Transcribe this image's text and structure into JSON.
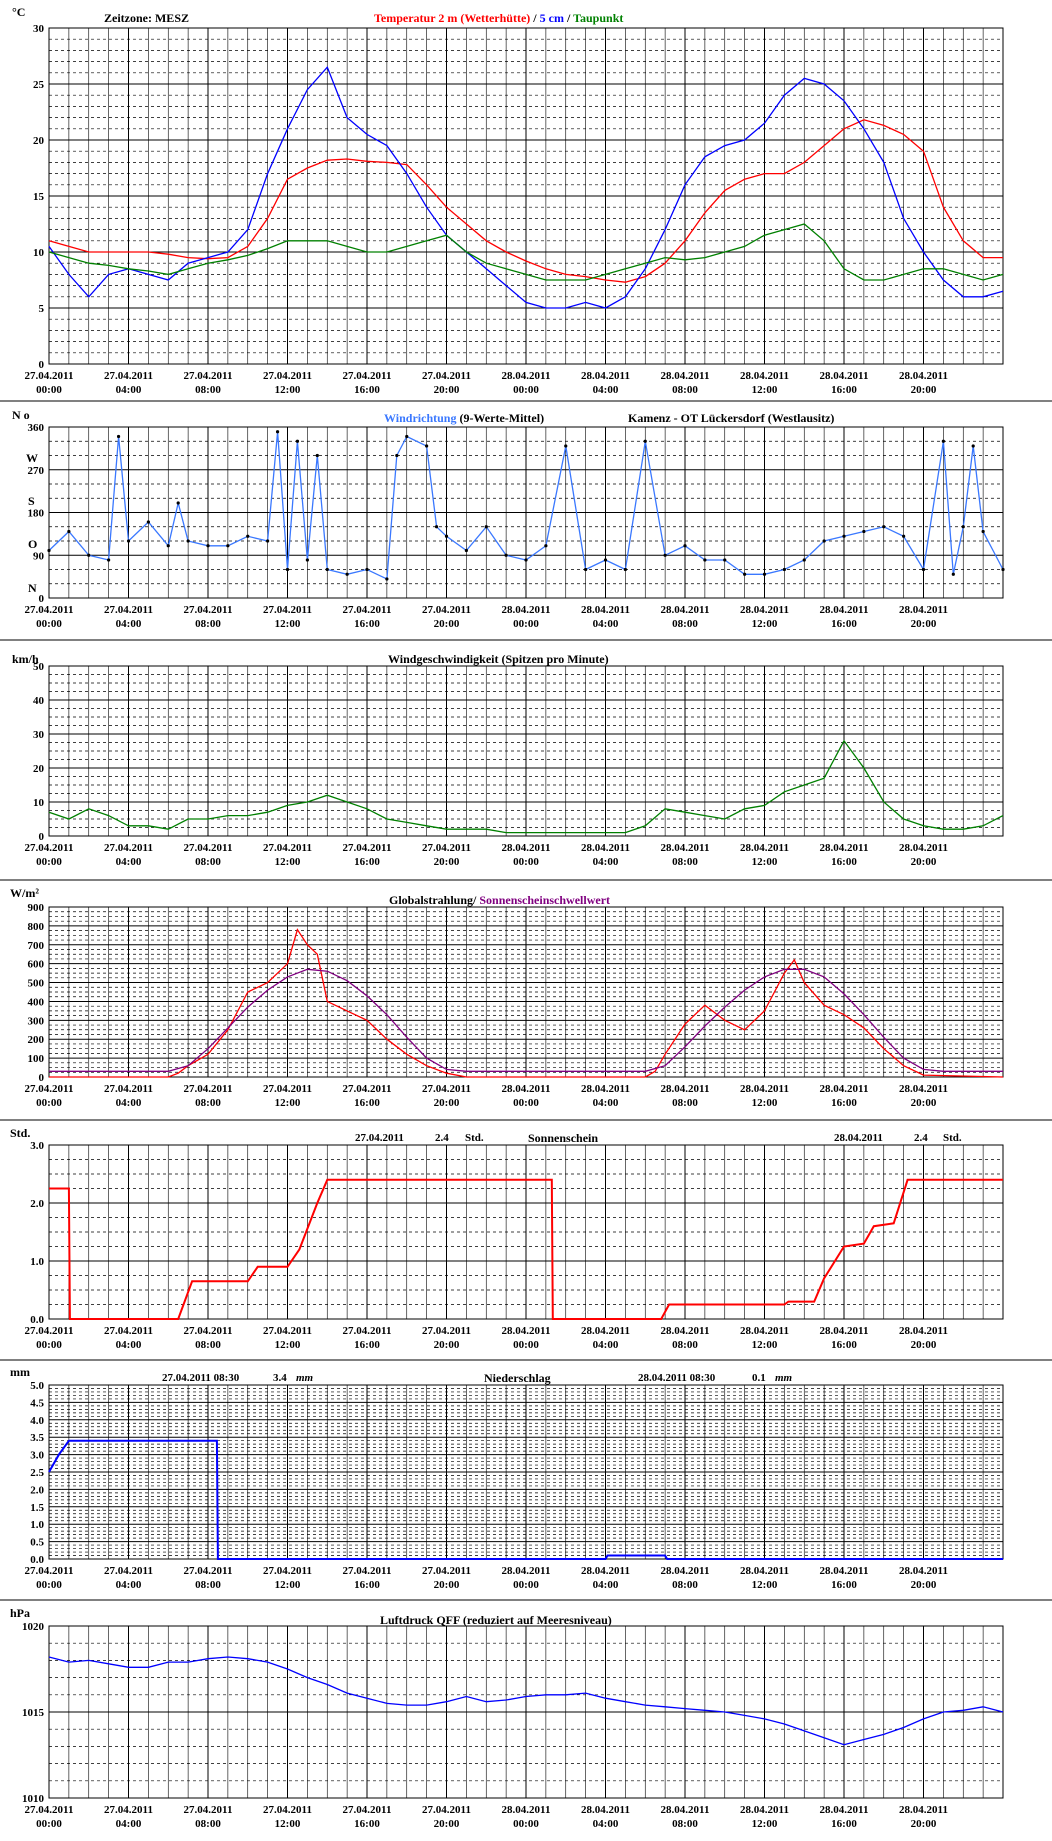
{
  "x_ticks": [
    {
      "date": "27.04.2011",
      "time": "00:00"
    },
    {
      "date": "27.04.2011",
      "time": "04:00"
    },
    {
      "date": "27.04.2011",
      "time": "08:00"
    },
    {
      "date": "27.04.2011",
      "time": "12:00"
    },
    {
      "date": "27.04.2011",
      "time": "16:00"
    },
    {
      "date": "27.04.2011",
      "time": "20:00"
    },
    {
      "date": "28.04.2011",
      "time": "00:00"
    },
    {
      "date": "28.04.2011",
      "time": "04:00"
    },
    {
      "date": "28.04.2011",
      "time": "08:00"
    },
    {
      "date": "28.04.2011",
      "time": "12:00"
    },
    {
      "date": "28.04.2011",
      "time": "16:00"
    },
    {
      "date": "28.04.2011",
      "time": "20:00"
    }
  ],
  "colors": {
    "red": "#ff0000",
    "blue": "#0000ff",
    "green": "#008000",
    "lightblue": "#3a78ff",
    "purple": "#800080",
    "black": "#000000"
  },
  "panels": {
    "temp": {
      "unit": "°C",
      "zone": "Zeitzone: MESZ",
      "title_parts": [
        {
          "text": "Temperatur 2 m (Wetterhütte)",
          "color": "#ff0000"
        },
        {
          "text": " / ",
          "color": "#000000"
        },
        {
          "text": "5 cm",
          "color": "#0000ff"
        },
        {
          "text": " / ",
          "color": "#000000"
        },
        {
          "text": "Taupunkt",
          "color": "#008000"
        }
      ]
    },
    "wind_dir": {
      "unit": "N o",
      "title_blue": "Windrichtung",
      "title_black": " (9-Werte-Mittel)",
      "station": "Kamenz - OT Lückersdorf (Westlausitz)",
      "letters": [
        "N",
        "O",
        "S",
        "W"
      ]
    },
    "wind_speed": {
      "unit": "km/h",
      "title": "Windgeschwindigkeit (Spitzen pro Minute)"
    },
    "radiation": {
      "unit": "W/m²",
      "title_black": "Globalstrahlung/ ",
      "title_purple": "Sonnenscheinschwellwert"
    },
    "sunshine": {
      "unit": "Std.",
      "title": "Sonnenschein",
      "day1_date": "27.04.2011",
      "day1_value": "2.4",
      "day1_unit": "Std.",
      "day2_date": "28.04.2011",
      "day2_value": "2.4",
      "day2_unit": "Std."
    },
    "precip": {
      "unit": "mm",
      "title": "Niederschlag",
      "day1_label": "27.04.2011 08:30",
      "day1_value": "3.4",
      "day1_unit": "mm",
      "day2_label": "28.04.2011 08:30",
      "day2_value": "0.1",
      "day2_unit": "mm"
    },
    "pressure": {
      "unit": "hPa",
      "title": "Luftdruck QFF (reduziert auf Meeresniveau)"
    }
  },
  "chart_data": [
    {
      "type": "line",
      "title": "Temperatur 2 m (Wetterhütte) / 5 cm / Taupunkt",
      "ylabel": "°C",
      "ylim": [
        0,
        30
      ],
      "yticks": [
        0,
        5,
        10,
        15,
        20,
        25,
        30
      ],
      "x_hours": [
        0,
        48
      ],
      "series": [
        {
          "name": "Temperatur 2 m (Wetterhütte)",
          "color": "#ff0000",
          "x": [
            0,
            1,
            2,
            3,
            4,
            5,
            6,
            7,
            8,
            9,
            10,
            11,
            12,
            13,
            14,
            15,
            16,
            17,
            18,
            19,
            20,
            21,
            22,
            23,
            24,
            25,
            26,
            27,
            28,
            29,
            30,
            31,
            32,
            33,
            34,
            35,
            36,
            37,
            38,
            39,
            40,
            41,
            42,
            43,
            44,
            45,
            46,
            47,
            48
          ],
          "y": [
            11,
            10.5,
            10,
            10,
            10,
            10,
            9.8,
            9.5,
            9.4,
            9.5,
            10.5,
            13,
            16.5,
            17.5,
            18.2,
            18.3,
            18.1,
            18,
            17.8,
            16,
            14,
            12.5,
            11,
            10,
            9.2,
            8.5,
            8,
            7.8,
            7.5,
            7.3,
            7.8,
            9,
            11,
            13.5,
            15.5,
            16.5,
            17,
            17,
            18,
            19.5,
            21,
            21.8,
            21.3,
            20.5,
            19,
            14,
            11,
            9.5,
            9.5
          ]
        },
        {
          "name": "5 cm",
          "color": "#0000ff",
          "x": [
            0,
            1,
            2,
            3,
            4,
            5,
            6,
            7,
            8,
            9,
            10,
            11,
            12,
            13,
            14,
            15,
            16,
            17,
            18,
            19,
            20,
            21,
            22,
            23,
            24,
            25,
            26,
            27,
            28,
            29,
            30,
            31,
            32,
            33,
            34,
            35,
            36,
            37,
            38,
            39,
            40,
            41,
            42,
            43,
            44,
            45,
            46,
            47,
            48
          ],
          "y": [
            10.5,
            8,
            6,
            8,
            8.5,
            8,
            7.5,
            9,
            9.5,
            10,
            12,
            17,
            21,
            24.5,
            26.5,
            22,
            20.5,
            19.5,
            17,
            14,
            11.5,
            10,
            8.5,
            7,
            5.5,
            5,
            5,
            5.5,
            5,
            6,
            8.5,
            12,
            16,
            18.5,
            19.5,
            20,
            21.5,
            24,
            25.5,
            25,
            23.5,
            21,
            18,
            13,
            10,
            7.5,
            6,
            6,
            6.5
          ]
        },
        {
          "name": "Taupunkt",
          "color": "#008000",
          "x": [
            0,
            1,
            2,
            3,
            4,
            5,
            6,
            7,
            8,
            9,
            10,
            11,
            12,
            13,
            14,
            15,
            16,
            17,
            18,
            19,
            20,
            21,
            22,
            23,
            24,
            25,
            26,
            27,
            28,
            29,
            30,
            31,
            32,
            33,
            34,
            35,
            36,
            37,
            38,
            39,
            40,
            41,
            42,
            43,
            44,
            45,
            46,
            47,
            48
          ],
          "y": [
            10,
            9.5,
            9,
            8.8,
            8.5,
            8.3,
            8,
            8.5,
            9,
            9.3,
            9.7,
            10.3,
            11,
            11,
            11,
            10.5,
            10,
            10,
            10.5,
            11,
            11.5,
            10,
            9,
            8.5,
            8,
            7.5,
            7.5,
            7.5,
            8,
            8.5,
            9,
            9.5,
            9.3,
            9.5,
            10,
            10.5,
            11.5,
            12,
            12.5,
            11,
            8.5,
            7.5,
            7.5,
            8,
            8.5,
            8.5,
            8,
            7.5,
            8
          ]
        }
      ]
    },
    {
      "type": "scatter",
      "title": "Windrichtung (9-Werte-Mittel)",
      "ylabel": "N o",
      "ylim": [
        0,
        360
      ],
      "yticks": [
        0,
        90,
        180,
        270,
        360
      ],
      "x_hours": [
        0,
        48
      ],
      "series": [
        {
          "name": "Windrichtung",
          "color": "#3a78ff",
          "x": [
            0,
            1,
            2,
            3,
            3.5,
            4,
            5,
            6,
            6.5,
            7,
            8,
            9,
            10,
            11,
            11.5,
            12,
            12.5,
            13,
            13.5,
            14,
            15,
            16,
            17,
            17.5,
            18,
            19,
            19.5,
            20,
            21,
            22,
            23,
            24,
            25,
            26,
            27,
            28,
            29,
            30,
            31,
            32,
            33,
            34,
            35,
            36,
            37,
            38,
            39,
            40,
            41,
            42,
            43,
            44,
            45,
            45.5,
            46,
            46.5,
            47,
            48
          ],
          "y": [
            100,
            140,
            90,
            80,
            340,
            120,
            160,
            110,
            200,
            120,
            110,
            110,
            130,
            120,
            350,
            60,
            330,
            80,
            300,
            60,
            50,
            60,
            40,
            300,
            340,
            320,
            150,
            130,
            100,
            150,
            90,
            80,
            110,
            320,
            60,
            80,
            60,
            330,
            90,
            110,
            80,
            80,
            50,
            50,
            60,
            80,
            120,
            130,
            140,
            150,
            130,
            60,
            330,
            50,
            150,
            320,
            140,
            60
          ]
        }
      ]
    },
    {
      "type": "line",
      "title": "Windgeschwindigkeit (Spitzen pro Minute)",
      "ylabel": "km/h",
      "ylim": [
        0,
        50
      ],
      "yticks": [
        0,
        10,
        20,
        30,
        40,
        50
      ],
      "x_hours": [
        0,
        48
      ],
      "series": [
        {
          "name": "Windgeschwindigkeit",
          "color": "#008000",
          "x": [
            0,
            1,
            2,
            3,
            4,
            5,
            6,
            7,
            8,
            9,
            10,
            11,
            12,
            13,
            14,
            15,
            16,
            17,
            18,
            19,
            20,
            21,
            22,
            23,
            24,
            25,
            26,
            27,
            28,
            29,
            30,
            31,
            32,
            33,
            34,
            35,
            36,
            37,
            38,
            39,
            40,
            41,
            42,
            43,
            44,
            45,
            46,
            47,
            48
          ],
          "y": [
            7,
            5,
            8,
            6,
            3,
            3,
            2,
            5,
            5,
            6,
            6,
            7,
            9,
            10,
            12,
            10,
            8,
            5,
            4,
            3,
            2,
            2,
            2,
            1,
            1,
            1,
            1,
            1,
            1,
            1,
            3,
            8,
            7,
            6,
            5,
            8,
            9,
            13,
            15,
            17,
            28,
            20,
            10,
            5,
            3,
            2,
            2,
            3,
            6
          ]
        }
      ]
    },
    {
      "type": "line",
      "title": "Globalstrahlung/ Sonnenscheinschwellwert",
      "ylabel": "W/m²",
      "ylim": [
        0,
        900
      ],
      "yticks": [
        0,
        100,
        200,
        300,
        400,
        500,
        600,
        700,
        800,
        900
      ],
      "x_hours": [
        0,
        48
      ],
      "series": [
        {
          "name": "Globalstrahlung",
          "color": "#ff0000",
          "x": [
            0,
            6,
            6.5,
            7,
            8,
            9,
            10,
            11,
            12,
            12.5,
            13,
            13.5,
            14,
            15,
            16,
            17,
            18,
            19,
            20,
            21,
            24,
            30,
            30.5,
            31,
            32,
            33,
            34,
            35,
            36,
            37,
            37.5,
            38,
            39,
            40,
            41,
            42,
            43,
            44,
            48
          ],
          "y": [
            0,
            0,
            20,
            60,
            120,
            250,
            450,
            500,
            600,
            780,
            700,
            650,
            400,
            350,
            300,
            200,
            120,
            60,
            20,
            0,
            0,
            0,
            30,
            120,
            280,
            380,
            300,
            250,
            350,
            550,
            620,
            500,
            380,
            330,
            260,
            150,
            60,
            10,
            0
          ]
        },
        {
          "name": "Sonnenscheinschwellwert",
          "color": "#800080",
          "x": [
            0,
            6,
            7,
            8,
            9,
            10,
            11,
            12,
            13,
            14,
            15,
            16,
            17,
            18,
            19,
            20,
            21,
            24,
            30,
            31,
            32,
            33,
            34,
            35,
            36,
            37,
            38,
            39,
            40,
            41,
            42,
            43,
            44,
            45,
            48
          ],
          "y": [
            30,
            30,
            60,
            150,
            260,
            370,
            460,
            530,
            570,
            560,
            510,
            430,
            330,
            210,
            100,
            40,
            30,
            30,
            30,
            60,
            160,
            270,
            370,
            460,
            530,
            570,
            570,
            530,
            440,
            330,
            210,
            100,
            40,
            30,
            30
          ]
        }
      ]
    },
    {
      "type": "line",
      "title": "Sonnenschein",
      "ylabel": "Std.",
      "ylim": [
        0,
        3
      ],
      "yticks": [
        0,
        1,
        2,
        3
      ],
      "x_hours": [
        0,
        48
      ],
      "series": [
        {
          "name": "Sonnenschein",
          "color": "#ff0000",
          "x": [
            0,
            1,
            1.05,
            6.5,
            7.2,
            10,
            10.5,
            12,
            12.6,
            13.5,
            14,
            14.3,
            25.3,
            25.35,
            30.8,
            31.2,
            37,
            37.2,
            38.5,
            39,
            40,
            41,
            41.5,
            42.5,
            43.2,
            48
          ],
          "y": [
            2.25,
            2.25,
            0,
            0,
            0.65,
            0.65,
            0.9,
            0.9,
            1.2,
            2.0,
            2.4,
            2.4,
            2.4,
            0,
            0,
            0.25,
            0.25,
            0.3,
            0.3,
            0.7,
            1.25,
            1.3,
            1.6,
            1.65,
            2.4,
            2.4
          ]
        }
      ]
    },
    {
      "type": "line",
      "title": "Niederschlag",
      "ylabel": "mm",
      "ylim": [
        0,
        5
      ],
      "yticks": [
        0,
        0.5,
        1,
        1.5,
        2,
        2.5,
        3,
        3.5,
        4,
        4.5,
        5
      ],
      "x_hours": [
        0,
        48
      ],
      "series": [
        {
          "name": "Niederschlag",
          "color": "#0000ff",
          "x": [
            0,
            0.5,
            1,
            8.45,
            8.5,
            28,
            28.1,
            31,
            31.1,
            48
          ],
          "y": [
            2.5,
            3.0,
            3.4,
            3.4,
            0,
            0,
            0.1,
            0.1,
            0,
            0
          ]
        }
      ]
    },
    {
      "type": "line",
      "title": "Luftdruck QFF (reduziert auf Meeresniveau)",
      "ylabel": "hPa",
      "ylim": [
        1010,
        1020
      ],
      "yticks": [
        1010,
        1015,
        1020
      ],
      "x_hours": [
        0,
        48
      ],
      "series": [
        {
          "name": "Luftdruck QFF",
          "color": "#0000ff",
          "x": [
            0,
            1,
            2,
            3,
            4,
            5,
            6,
            7,
            8,
            9,
            10,
            11,
            12,
            13,
            14,
            15,
            16,
            17,
            18,
            19,
            20,
            21,
            22,
            23,
            24,
            25,
            26,
            27,
            28,
            29,
            30,
            31,
            32,
            33,
            34,
            35,
            36,
            37,
            38,
            39,
            40,
            41,
            42,
            43,
            44,
            45,
            46,
            47,
            48
          ],
          "y": [
            1018.2,
            1017.9,
            1018.0,
            1017.8,
            1017.6,
            1017.6,
            1017.9,
            1017.9,
            1018.1,
            1018.2,
            1018.1,
            1017.9,
            1017.5,
            1017.0,
            1016.6,
            1016.1,
            1015.8,
            1015.5,
            1015.4,
            1015.4,
            1015.6,
            1015.9,
            1015.6,
            1015.7,
            1015.9,
            1016.0,
            1016.0,
            1016.1,
            1015.8,
            1015.6,
            1015.4,
            1015.3,
            1015.2,
            1015.1,
            1015.0,
            1014.8,
            1014.6,
            1014.3,
            1013.9,
            1013.5,
            1013.1,
            1013.4,
            1013.7,
            1014.1,
            1014.6,
            1015.0,
            1015.1,
            1015.3,
            1015.0
          ]
        }
      ]
    }
  ]
}
